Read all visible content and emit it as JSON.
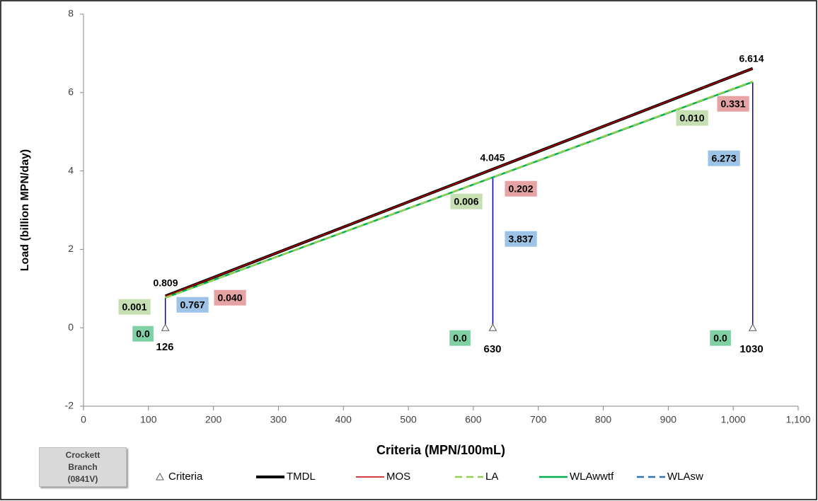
{
  "chart_data": {
    "type": "line",
    "x_label": "Criteria (MPN/100mL)",
    "y_label": "Load (billion MPN/day)",
    "annotation": "Crockett Branch (0841V)",
    "xlim": [
      0,
      1100
    ],
    "xticks": [
      0,
      100,
      200,
      300,
      400,
      500,
      600,
      700,
      800,
      900,
      {
        "value": 1000,
        "label": "1,000"
      },
      {
        "value": 1100,
        "label": "1,100"
      }
    ],
    "ylim": [
      -2,
      8
    ],
    "yticks": [
      -2,
      0,
      2,
      4,
      6,
      8
    ],
    "grid": false,
    "x": [
      126,
      630,
      1030
    ],
    "criteria": {
      "name": "Criteria",
      "color": "#595959"
    },
    "series": [
      {
        "name": "TMDL",
        "color": "#000000",
        "style": "solid",
        "width": 4,
        "stacked": false,
        "values": [
          0.809,
          4.045,
          6.614
        ]
      },
      {
        "name": "MOS",
        "color": "#c00000",
        "style": "solid",
        "width": 1.5,
        "stacked": true,
        "label_color": "#e6a3a3",
        "values": [
          0.04,
          0.202,
          0.331
        ],
        "value_labels": [
          "0.040",
          "0.202",
          "0.331"
        ]
      },
      {
        "name": "LA",
        "color": "#92d050",
        "style": "dashed",
        "width": 2.5,
        "stacked": true,
        "label_color": "#c6e0b4",
        "values": [
          0.001,
          0.006,
          0.01
        ],
        "value_labels": [
          "0.001",
          "0.006",
          "0.010"
        ]
      },
      {
        "name": "WLAwwtf",
        "color": "#00b050",
        "style": "solid",
        "width": 2.5,
        "stacked": true,
        "label_color": "#7fd1a5",
        "values": [
          0,
          0,
          0
        ],
        "value_labels": [
          "0.0",
          "0.0",
          "0.0"
        ]
      },
      {
        "name": "WLAsw",
        "color": "#2e75b6",
        "style": "dashed",
        "width": 2.5,
        "stacked": true,
        "label_color": "#9dc3e6",
        "drop_lines": "#0000c0",
        "values": [
          0.767,
          3.837,
          6.273
        ]
      }
    ]
  }
}
